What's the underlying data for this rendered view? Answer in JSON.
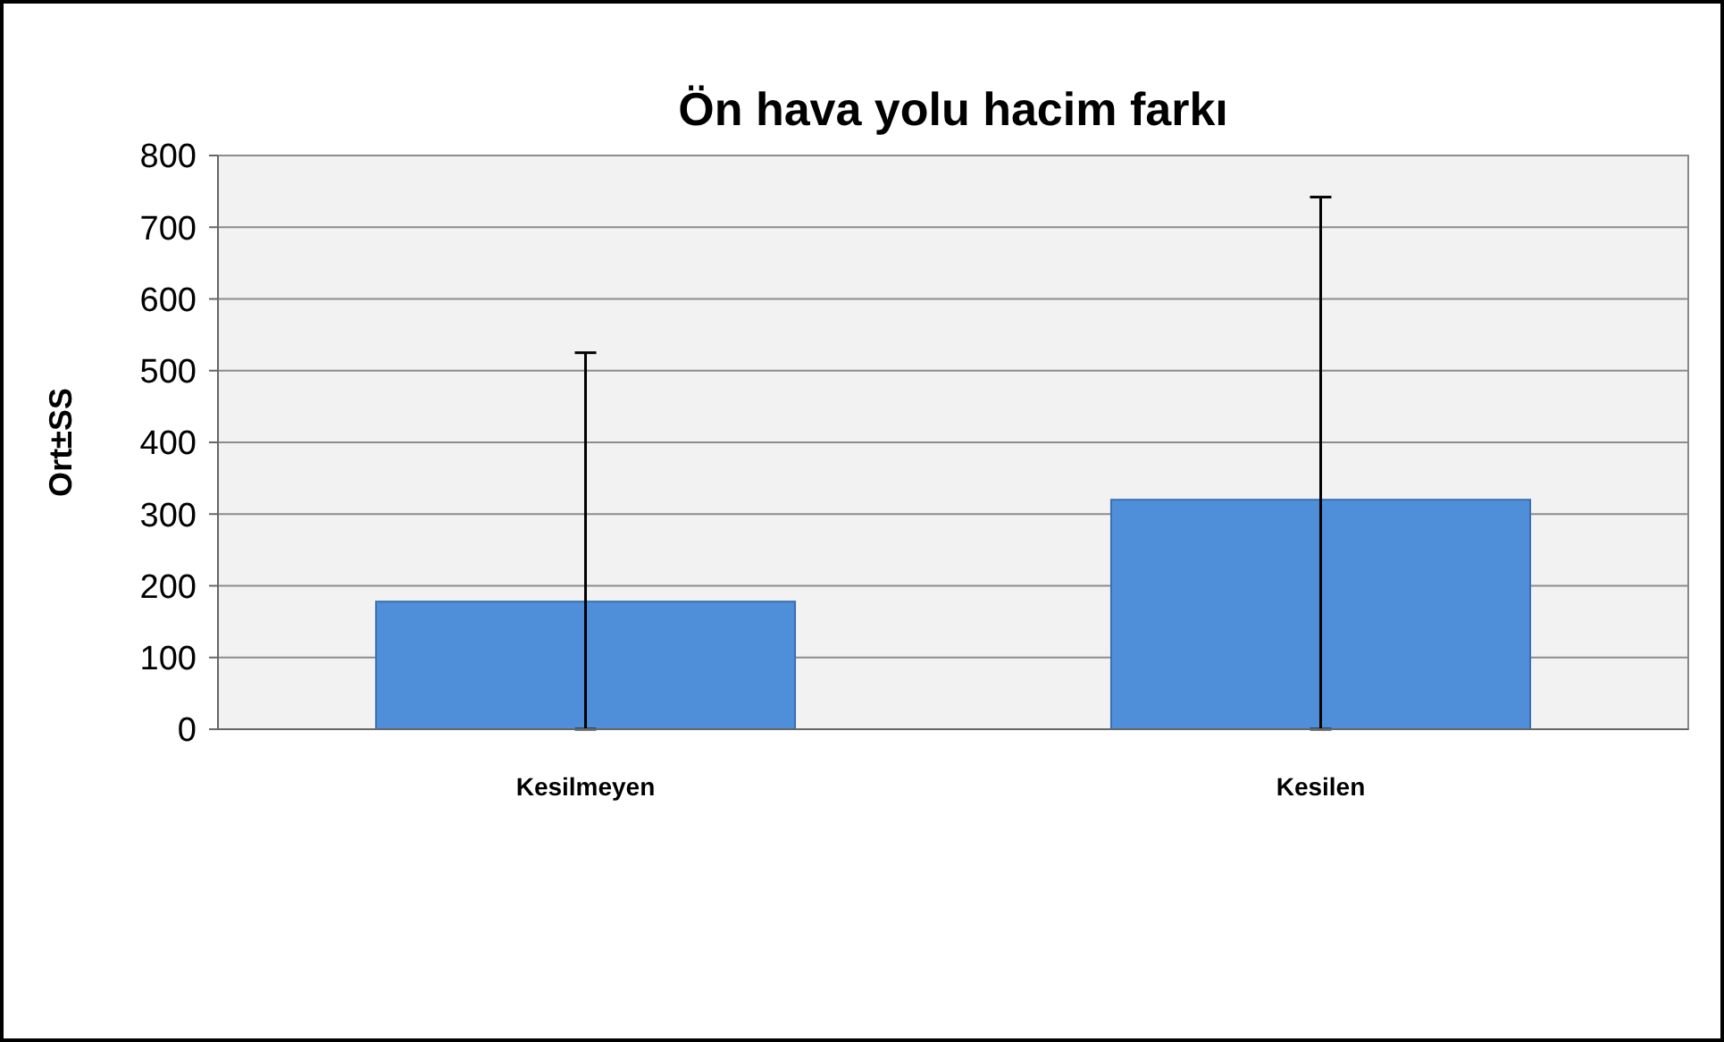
{
  "chart_data": {
    "type": "bar",
    "title": "Ön hava yolu hacim farkı",
    "ylabel": "Ort±SS",
    "categories": [
      "Kesilmeyen",
      "Kesilen"
    ],
    "values": [
      178,
      320
    ],
    "errors": [
      [
        0,
        525
      ],
      [
        0,
        742
      ]
    ],
    "color": "#4f8fd9",
    "ylim": [
      0,
      800
    ],
    "yticks": [
      0,
      100,
      200,
      300,
      400,
      500,
      600,
      700,
      800
    ],
    "grid": "y"
  }
}
